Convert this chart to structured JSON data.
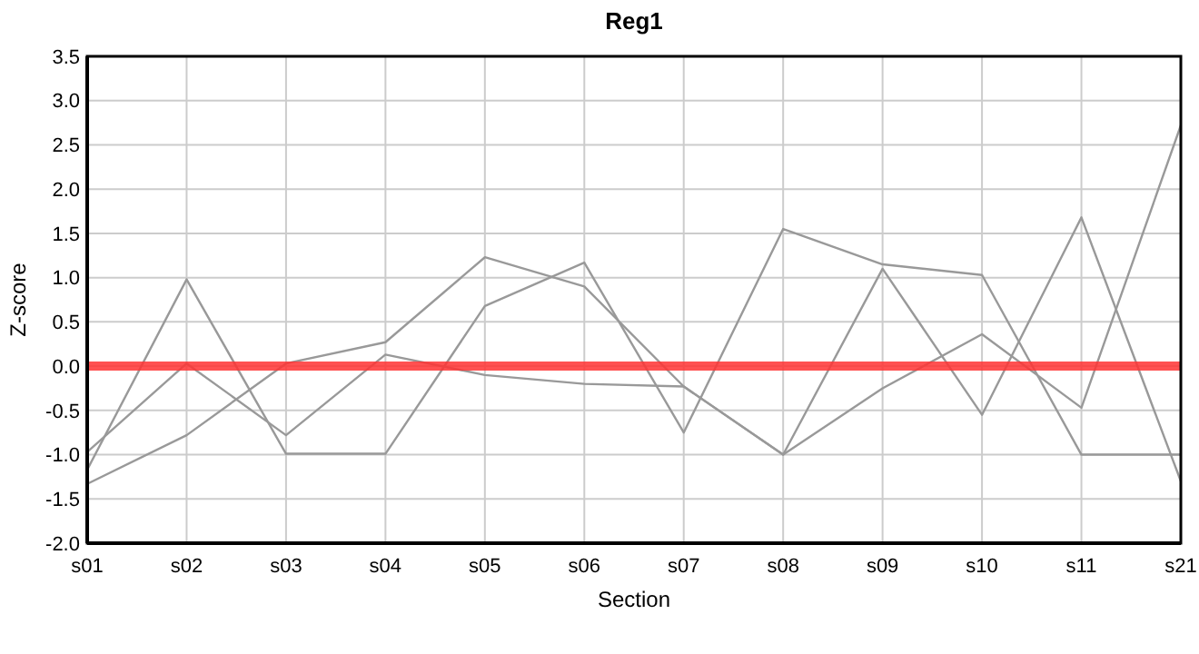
{
  "chart_data": {
    "type": "line",
    "title": "Reg1",
    "xlabel": "Section",
    "ylabel": "Z-score",
    "categories": [
      "s01",
      "s02",
      "s03",
      "s04",
      "s05",
      "s06",
      "s07",
      "s08",
      "s09",
      "s10",
      "s11",
      "s21"
    ],
    "series": [
      {
        "color": "#999999",
        "values": [
          -1.33,
          -0.78,
          0.03,
          0.27,
          1.23,
          0.9,
          -0.23,
          -1.0,
          1.1,
          -0.55,
          1.68,
          -1.3
        ]
      },
      {
        "color": "#999999",
        "values": [
          -1.17,
          0.98,
          -0.99,
          -0.99,
          0.68,
          1.17,
          -0.75,
          1.55,
          1.15,
          1.03,
          -1.0,
          -1.0
        ]
      },
      {
        "color": "#999999",
        "values": [
          -0.97,
          0.03,
          -0.78,
          0.13,
          -0.1,
          -0.2,
          -0.23,
          -1.0,
          -0.25,
          0.36,
          -0.47,
          2.72
        ]
      }
    ],
    "ylim": [
      -2,
      3.5
    ],
    "yticks": [
      {
        "value": -2,
        "label": "-2.0"
      },
      {
        "value": -1.5,
        "label": "-1.5"
      },
      {
        "value": -1,
        "label": "-1.0"
      },
      {
        "value": -0.5,
        "label": "-0.5"
      },
      {
        "value": 0,
        "label": "0.0"
      },
      {
        "value": 0.5,
        "label": "0.5"
      },
      {
        "value": 1,
        "label": "1.0"
      },
      {
        "value": 1.5,
        "label": "1.5"
      },
      {
        "value": 2,
        "label": "2.0"
      },
      {
        "value": 2.5,
        "label": "2.5"
      },
      {
        "value": 3,
        "label": "3.0"
      },
      {
        "value": 3.5,
        "label": "3.5"
      }
    ],
    "grid": true,
    "marker": "none",
    "line_style": "solid",
    "ref_lines": [
      {
        "axis": "y",
        "value": 0,
        "color": "#ff3333"
      }
    ]
  }
}
